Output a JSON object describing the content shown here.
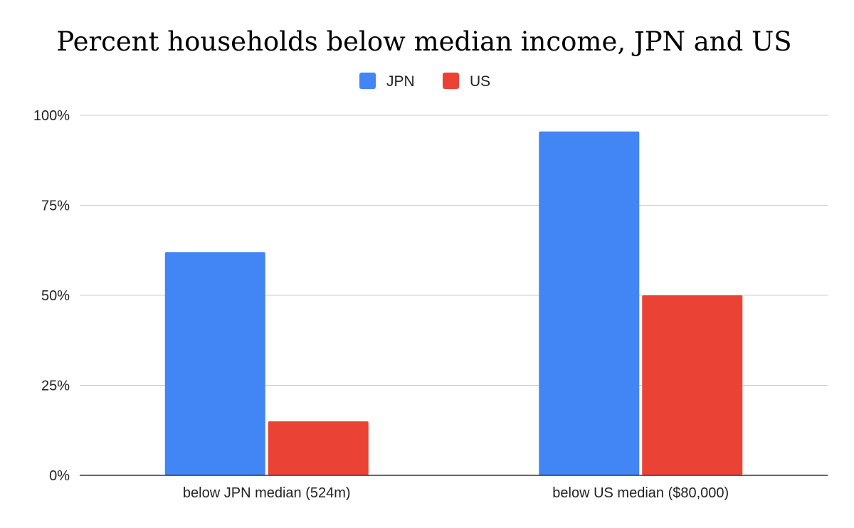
{
  "chart_data": {
    "type": "bar",
    "title": "Percent households below median income, JPN and US",
    "categories": [
      "below JPN median (524m)",
      "below US median ($80,000)"
    ],
    "series": [
      {
        "name": "JPN",
        "color": "#4285f4",
        "values": [
          62,
          95.5
        ]
      },
      {
        "name": "US",
        "color": "#ea4335",
        "values": [
          15,
          50
        ]
      }
    ],
    "ylim": [
      0,
      100
    ],
    "yticks": [
      0,
      25,
      50,
      75,
      100
    ],
    "ytick_labels": [
      "0%",
      "25%",
      "50%",
      "75%",
      "100%"
    ],
    "xlabel": "",
    "ylabel": "",
    "grid": true,
    "legend_position": "top-center"
  }
}
